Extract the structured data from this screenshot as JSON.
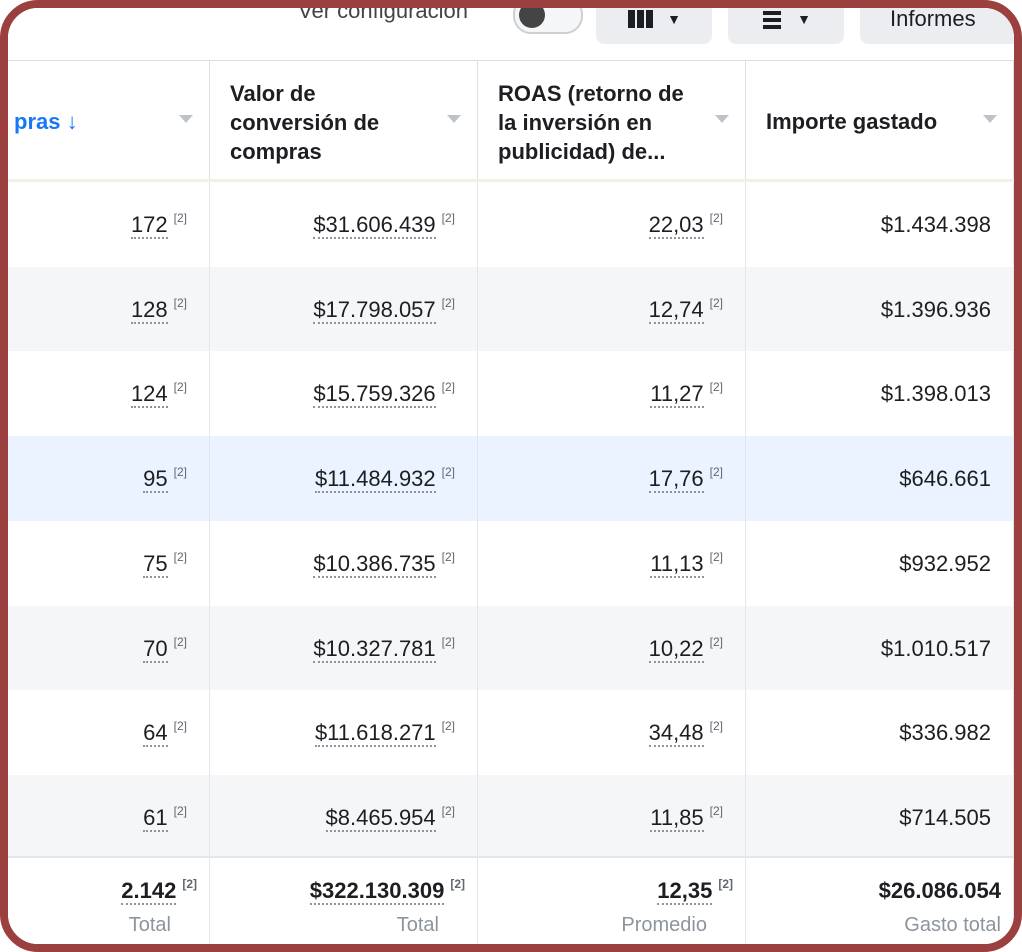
{
  "toolbar": {
    "config_label": "Ver configuración",
    "reports_label": "Informes",
    "columns_icon": "columns-icon",
    "breakdown_icon": "breakdown-icon"
  },
  "columns": [
    {
      "label": "pras ↓"
    },
    {
      "label": "Valor de conversión de compras"
    },
    {
      "label": "ROAS (retorno de la inversión en publicidad) de..."
    },
    {
      "label": "Importe gastado"
    }
  ],
  "rows": [
    {
      "purchases": "172",
      "conv_value": "$31.606.439",
      "roas": "22,03",
      "spent": "$1.434.398",
      "ref": "[2]",
      "shade": "none"
    },
    {
      "purchases": "128",
      "conv_value": "$17.798.057",
      "roas": "12,74",
      "spent": "$1.396.936",
      "ref": "[2]",
      "shade": "gray"
    },
    {
      "purchases": "124",
      "conv_value": "$15.759.326",
      "roas": "11,27",
      "spent": "$1.398.013",
      "ref": "[2]",
      "shade": "none"
    },
    {
      "purchases": "95",
      "conv_value": "$11.484.932",
      "roas": "17,76",
      "spent": "$646.661",
      "ref": "[2]",
      "shade": "blue"
    },
    {
      "purchases": "75",
      "conv_value": "$10.386.735",
      "roas": "11,13",
      "spent": "$932.952",
      "ref": "[2]",
      "shade": "none"
    },
    {
      "purchases": "70",
      "conv_value": "$10.327.781",
      "roas": "10,22",
      "spent": "$1.010.517",
      "ref": "[2]",
      "shade": "gray"
    },
    {
      "purchases": "64",
      "conv_value": "$11.618.271",
      "roas": "34,48",
      "spent": "$336.982",
      "ref": "[2]",
      "shade": "none"
    },
    {
      "purchases": "61",
      "conv_value": "$8.465.954",
      "roas": "11,85",
      "spent": "$714.505",
      "ref": "[2]",
      "shade": "gray"
    }
  ],
  "totals": {
    "purchases": "2.142",
    "purchases_label": "Total",
    "conv_value": "$322.130.309",
    "conv_value_label": "Total",
    "roas": "12,35",
    "roas_label": "Promedio",
    "spent": "$26.086.054",
    "spent_label": "Gasto total",
    "ref": "[2]"
  },
  "colors": {
    "accent": "#1877f2",
    "border": "#9c3f3f",
    "row_gray": "#f5f6f7",
    "row_blue": "#eaf3ff"
  }
}
